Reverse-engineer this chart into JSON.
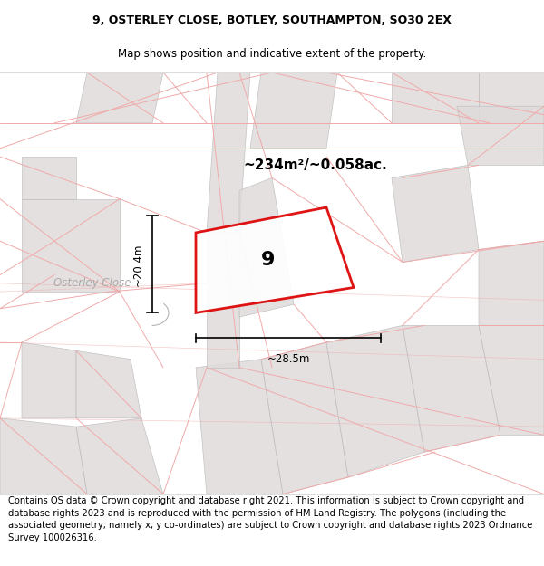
{
  "title_line1": "9, OSTERLEY CLOSE, BOTLEY, SOUTHAMPTON, SO30 2EX",
  "title_line2": "Map shows position and indicative extent of the property.",
  "area_text": "~234m²/~0.058ac.",
  "width_label": "~28.5m",
  "height_label": "~20.4m",
  "plot_number": "9",
  "street_label": "Osterley Close",
  "footer_text": "Contains OS data © Crown copyright and database right 2021. This information is subject to Crown copyright and database rights 2023 and is reproduced with the permission of HM Land Registry. The polygons (including the associated geometry, namely x, y co-ordinates) are subject to Crown copyright and database rights 2023 Ordnance Survey 100026316.",
  "bg_color": "#ffffff",
  "map_bg": "#f9f5f5",
  "plot_outline_color": "#dd0000",
  "block_fill": "#e0dbdb",
  "title_fontsize": 9,
  "footer_fontsize": 7.2,
  "pink": "#f0aaaa",
  "gray_line": "#bbbbbb"
}
